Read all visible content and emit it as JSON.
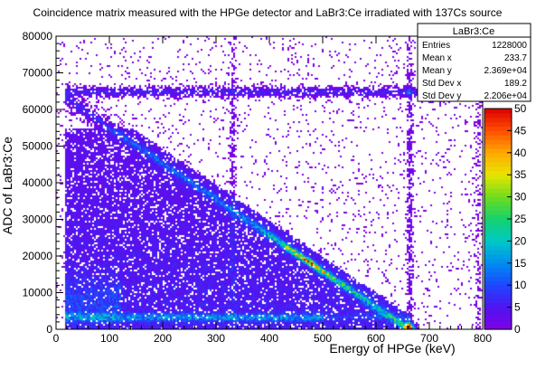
{
  "chart_data": {
    "type": "heatmap",
    "title": "Coincidence matrix measured with the HPGe detector and LaBr3:Ce irradiated with 137Cs source",
    "xlabel": "Energy of HPGe (keV)",
    "ylabel": "ADC of LaBr3:Ce",
    "xlim": [
      0,
      800
    ],
    "ylim": [
      0,
      80000
    ],
    "x_ticks": [
      "0",
      "100",
      "200",
      "300",
      "400",
      "500",
      "600",
      "700",
      "800"
    ],
    "y_ticks": [
      "0",
      "10000",
      "20000",
      "30000",
      "40000",
      "50000",
      "60000",
      "70000",
      "80000"
    ],
    "x_tick_values": [
      0,
      100,
      200,
      300,
      400,
      500,
      600,
      700,
      800
    ],
    "y_tick_values": [
      0,
      10000,
      20000,
      30000,
      40000,
      50000,
      60000,
      70000,
      80000
    ],
    "colorbar": {
      "range": [
        0,
        50
      ],
      "ticks": [
        "0",
        "5",
        "10",
        "15",
        "20",
        "25",
        "30",
        "35",
        "40",
        "45",
        "50"
      ],
      "tick_values": [
        0,
        5,
        10,
        15,
        20,
        25,
        30,
        35,
        40,
        45,
        50
      ]
    },
    "stats_box": {
      "title": "LaBr3:Ce",
      "rows": [
        {
          "label": "Entries",
          "value": "1228000"
        },
        {
          "label": "Mean x",
          "value": "233.7"
        },
        {
          "label": "Mean y",
          "value": "2.369e+04"
        },
        {
          "label": "Std Dev x",
          "value": "189.2"
        },
        {
          "label": "Std Dev y",
          "value": "2.206e+04"
        }
      ]
    },
    "features": {
      "photopeak_energy_kev": 662,
      "photopeak_adc": 65000,
      "compton_edge_adc": 55000,
      "low_energy_band_adc": 3500,
      "vertical_line_kev": 330,
      "extra_vertical_line_kev": 790
    },
    "grid": false,
    "legend": "top-right"
  }
}
